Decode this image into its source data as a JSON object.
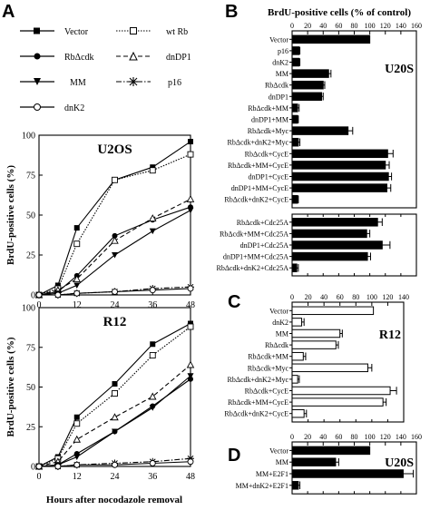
{
  "panels": {
    "A": "A",
    "B": "B",
    "C": "C",
    "D": "D"
  },
  "legend_a": [
    "Vector",
    "RbΔcdk",
    "MM",
    "dnK2",
    "wt Rb",
    "dnDP1",
    "p16"
  ],
  "colors": {
    "ink": "#000000",
    "bar": "#000000",
    "bar_open": "#ffffff"
  },
  "chart_data": [
    {
      "id": "A-U2OS",
      "type": "line",
      "title": "U2OS",
      "xlabel": "Hours after nocodazole removal",
      "ylabel": "BrdU-positive cells (%)",
      "xlim": [
        0,
        48
      ],
      "ylim": [
        0,
        100
      ],
      "xticks": [
        0,
        12,
        24,
        36,
        48
      ],
      "yticks": [
        0,
        25,
        50,
        75,
        100
      ],
      "x": [
        0,
        6,
        12,
        24,
        36,
        48
      ],
      "series": [
        {
          "name": "Vector",
          "values": [
            0,
            6,
            42,
            72,
            80,
            96
          ]
        },
        {
          "name": "wt Rb",
          "values": [
            0,
            4,
            32,
            72,
            78,
            88
          ]
        },
        {
          "name": "RbΔcdk",
          "values": [
            0,
            2,
            12,
            37,
            47,
            55
          ]
        },
        {
          "name": "dnDP1",
          "values": [
            0,
            3,
            10,
            34,
            48,
            60
          ]
        },
        {
          "name": "MM",
          "values": [
            0,
            1,
            6,
            25,
            40,
            53
          ]
        },
        {
          "name": "p16",
          "values": [
            0,
            0,
            1,
            2,
            4,
            5
          ]
        },
        {
          "name": "dnK2",
          "values": [
            0,
            0,
            1,
            2,
            3,
            4
          ]
        }
      ]
    },
    {
      "id": "A-R12",
      "type": "line",
      "title": "R12",
      "xlabel": "Hours after nocodazole removal",
      "ylabel": "BrdU-positive cells (%)",
      "xlim": [
        0,
        48
      ],
      "ylim": [
        0,
        100
      ],
      "xticks": [
        0,
        12,
        24,
        36,
        48
      ],
      "yticks": [
        0,
        25,
        50,
        75,
        100
      ],
      "x": [
        0,
        6,
        12,
        24,
        36,
        48
      ],
      "series": [
        {
          "name": "Vector",
          "values": [
            0,
            6,
            31,
            52,
            77,
            90
          ]
        },
        {
          "name": "wt Rb",
          "values": [
            0,
            5,
            27,
            46,
            70,
            88
          ]
        },
        {
          "name": "dnDP1",
          "values": [
            0,
            3,
            17,
            31,
            44,
            64
          ]
        },
        {
          "name": "RbΔcdk",
          "values": [
            0,
            1,
            8,
            22,
            38,
            55
          ]
        },
        {
          "name": "MM",
          "values": [
            0,
            1,
            6,
            22,
            37,
            57
          ]
        },
        {
          "name": "p16",
          "values": [
            0,
            0,
            1,
            2,
            3,
            5
          ]
        },
        {
          "name": "dnK2",
          "values": [
            0,
            0,
            1,
            1,
            2,
            3
          ]
        }
      ]
    },
    {
      "id": "B",
      "type": "bar",
      "title": "BrdU-positive cells (% of control)",
      "cell_label": "U20S",
      "xlim": [
        0,
        160
      ],
      "xticks": [
        0,
        20,
        40,
        60,
        80,
        100,
        120,
        140,
        160
      ],
      "groups": [
        {
          "categories": [
            "Vector",
            "p16",
            "dnK2",
            "MM",
            "RbΔcdk",
            "dnDP1",
            "RbΔcdk+MM",
            "dnDP1+MM",
            "RbΔcdk+Myc",
            "RbΔcdk+dnK2+Myc",
            "RbΔcdk+CycE",
            "RbΔcdk+MM+CycE",
            "dnDP1+CycE",
            "dnDP1+MM+CycE",
            "RbΔcdk+dnK2+CycE"
          ],
          "values": [
            100,
            9,
            9,
            47,
            40,
            38,
            7,
            7,
            72,
            8,
            123,
            120,
            124,
            122,
            7
          ],
          "errors": [
            0,
            1,
            1,
            3,
            2,
            2,
            2,
            1,
            6,
            2,
            7,
            5,
            4,
            5,
            1
          ]
        },
        {
          "categories": [
            "RbΔcdk+Cdc25A",
            "RbΔcdk+MM+Cdc25A",
            "dnDP1+Cdc25A",
            "dnDP1+MM+Cdc25A",
            "RbΔcdk+dnK2+Cdc25A"
          ],
          "values": [
            110,
            96,
            116,
            97,
            6
          ],
          "errors": [
            6,
            4,
            10,
            4,
            2
          ]
        }
      ]
    },
    {
      "id": "C",
      "type": "bar",
      "cell_label": "R12",
      "xlim": [
        0,
        140
      ],
      "xticks": [
        0,
        20,
        40,
        60,
        80,
        100,
        120,
        140
      ],
      "groups": [
        {
          "categories": [
            "Vector",
            "dnK2",
            "MM",
            "RbΔcdk",
            "RbΔcdk+MM",
            "RbΔcdk+Myc",
            "RbΔcdk+dnK2+Myc",
            "RbΔcdk+CycE",
            "RbΔcdk+MM+CycE",
            "RbΔcdk+dnK2+CycE"
          ],
          "values": [
            102,
            12,
            60,
            55,
            14,
            95,
            7,
            123,
            114,
            15
          ],
          "errors": [
            0,
            3,
            3,
            3,
            3,
            5,
            2,
            8,
            4,
            3
          ]
        }
      ]
    },
    {
      "id": "D",
      "type": "bar",
      "cell_label": "U20S",
      "xlim": [
        0,
        160
      ],
      "xticks": [
        0,
        20,
        40,
        60,
        80,
        100,
        120,
        140,
        160
      ],
      "groups": [
        {
          "categories": [
            "Vector",
            "MM",
            "MM+E2F1",
            "MM+dnK2+E2F1"
          ],
          "values": [
            100,
            56,
            143,
            8
          ],
          "errors": [
            0,
            4,
            13,
            2
          ]
        }
      ]
    }
  ]
}
